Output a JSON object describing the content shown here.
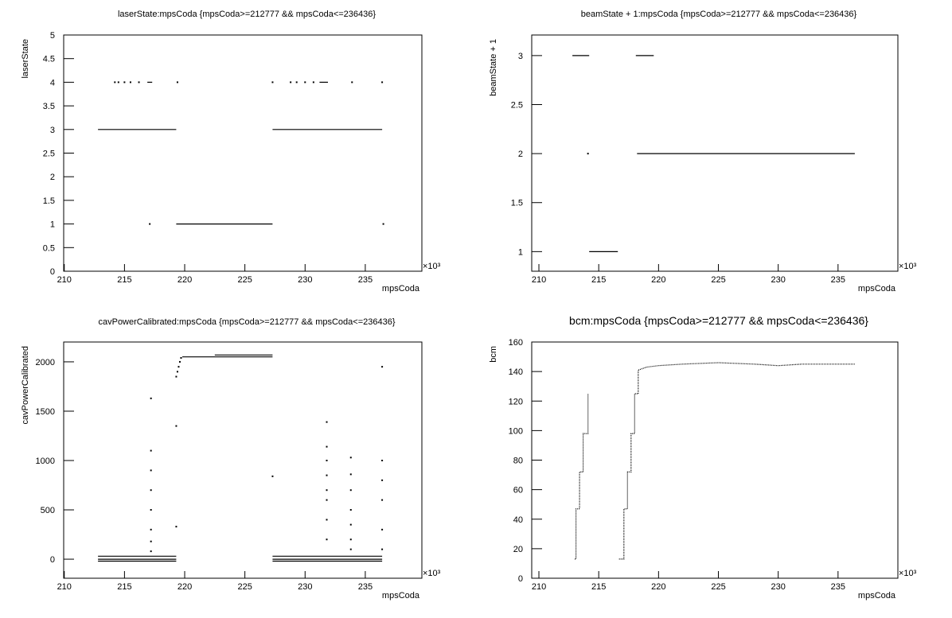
{
  "chart_data": [
    {
      "type": "scatter",
      "title": "laserState:mpsCoda {mpsCoda>=212777 && mpsCoda<=236436}",
      "x_label": "mpsCoda",
      "y_label": "laserState",
      "x_multiplier": "×10³",
      "xlim": [
        209.95,
        239.7
      ],
      "xticks": [
        210,
        215,
        220,
        225,
        230,
        235
      ],
      "ylim": [
        0,
        5
      ],
      "yticks": [
        0,
        0.5,
        1,
        1.5,
        2,
        2.5,
        3,
        3.5,
        4,
        4.5,
        5
      ],
      "series": [
        {
          "color": "#000000",
          "x": [
            212.8,
            219.3,
            null,
            219.3,
            227.3,
            null,
            227.3,
            236.4,
            null,
            214.2,
            null,
            214.5,
            null,
            215.0,
            null,
            215.5,
            null,
            216.2,
            null,
            216.9,
            217.3,
            null,
            219.4,
            null,
            227.3,
            null,
            228.8,
            null,
            229.3,
            null,
            230.0,
            null,
            230.7,
            null,
            231.2,
            231.9,
            null,
            233.9,
            null,
            236.4,
            null,
            217.1,
            null,
            236.5
          ],
          "values": [
            3,
            3,
            null,
            1,
            1,
            null,
            3,
            3,
            null,
            4,
            null,
            4,
            null,
            4,
            null,
            4,
            null,
            4,
            null,
            4,
            4,
            null,
            4,
            null,
            4,
            null,
            4,
            null,
            4,
            null,
            4,
            null,
            4,
            null,
            4,
            4,
            null,
            4,
            null,
            4,
            null,
            1,
            null,
            1
          ]
        }
      ]
    },
    {
      "type": "scatter",
      "title": "beamState + 1:mpsCoda {mpsCoda>=212777 && mpsCoda<=236436}",
      "x_label": "mpsCoda",
      "y_label": "beamState + 1",
      "x_multiplier": "×10³",
      "xlim": [
        209.4,
        240
      ],
      "xticks": [
        210,
        215,
        220,
        225,
        230,
        235
      ],
      "ylim": [
        0.8,
        3.21
      ],
      "yticks": [
        1,
        1.5,
        2,
        2.5,
        3
      ],
      "series": [
        {
          "color": "#000000",
          "x": [
            212.8,
            214.2,
            null,
            218.1,
            219.6,
            null,
            214.1,
            null,
            214.2,
            216.6,
            null,
            218.2,
            236.4
          ],
          "values": [
            3,
            3,
            null,
            3,
            3,
            null,
            2,
            null,
            1,
            1,
            null,
            2,
            2
          ]
        }
      ]
    },
    {
      "type": "scatter",
      "title": "cavPowerCalibrated:mpsCoda {mpsCoda>=212777 && mpsCoda<=236436}",
      "x_label": "mpsCoda",
      "y_label": "cavPowerCalibrated",
      "x_multiplier": "×10³",
      "xlim": [
        209.95,
        239.7
      ],
      "xticks": [
        210,
        215,
        220,
        225,
        230,
        235
      ],
      "ylim": [
        -193,
        2201
      ],
      "yticks": [
        0,
        500,
        1000,
        1500,
        2000
      ],
      "series": [
        {
          "color": "#000000",
          "x": [
            212.8,
            219.3,
            null,
            212.8,
            219.3,
            null,
            212.8,
            219.3,
            null,
            227.3,
            236.4,
            null,
            227.3,
            236.4,
            null,
            227.3,
            236.4,
            null,
            219.8,
            227.3,
            null,
            222.5,
            227.3,
            null,
            219.3,
            null,
            219.4,
            null,
            219.5,
            null,
            219.6,
            null,
            219.7,
            null,
            217.2,
            null,
            217.2,
            null,
            217.2,
            null,
            217.2,
            null,
            217.2,
            null,
            217.2,
            null,
            217.2,
            null,
            217.2,
            null,
            231.8,
            null,
            231.8,
            null,
            231.8,
            null,
            231.8,
            null,
            231.8,
            null,
            231.8,
            null,
            231.8,
            null,
            231.8,
            null,
            233.8,
            null,
            233.8,
            null,
            233.8,
            null,
            233.8,
            null,
            233.8,
            null,
            233.8,
            null,
            233.8,
            null,
            236.4,
            null,
            236.4,
            null,
            236.4,
            null,
            236.4,
            null,
            236.4,
            null,
            236.4,
            null,
            219.3,
            null,
            219.3,
            null,
            227.3
          ],
          "values": [
            30,
            30,
            null,
            0,
            0,
            null,
            -20,
            -20,
            null,
            30,
            30,
            null,
            0,
            0,
            null,
            -20,
            -20,
            null,
            2050,
            2050,
            null,
            2070,
            2070,
            null,
            1850,
            null,
            1900,
            null,
            1950,
            null,
            2000,
            null,
            2040,
            null,
            180,
            null,
            300,
            null,
            500,
            null,
            700,
            null,
            900,
            null,
            1100,
            null,
            1630,
            null,
            80,
            null,
            200,
            null,
            400,
            null,
            600,
            null,
            700,
            null,
            850,
            null,
            1000,
            null,
            1140,
            null,
            1390,
            null,
            100,
            null,
            200,
            null,
            350,
            null,
            500,
            null,
            700,
            null,
            860,
            null,
            1030,
            null,
            100,
            null,
            300,
            null,
            600,
            null,
            800,
            null,
            1000,
            null,
            1950,
            null,
            330,
            null,
            1350,
            null,
            840
          ]
        }
      ]
    },
    {
      "type": "scatter",
      "title": "bcm:mpsCoda {mpsCoda>=212777 && mpsCoda<=236436}",
      "x_label": "mpsCoda",
      "y_label": "bcm",
      "x_multiplier": "×10³",
      "xlim": [
        209.4,
        240
      ],
      "xticks": [
        210,
        215,
        220,
        225,
        230,
        235
      ],
      "ylim": [
        0,
        160
      ],
      "yticks": [
        0,
        20,
        40,
        60,
        80,
        100,
        120,
        140,
        160
      ],
      "series": [
        {
          "color": "#000000",
          "x": [
            213.0,
            213.1,
            213.1,
            213.4,
            213.4,
            213.7,
            213.7,
            214.1,
            214.1,
            null,
            216.7,
            217.1,
            217.1,
            217.4,
            217.4,
            217.7,
            217.7,
            218.0,
            218.0,
            218.3,
            218.3,
            219.0,
            220.0,
            222.0,
            225.0,
            228.0,
            230.0,
            232.0,
            234.0,
            236.4
          ],
          "values": [
            13,
            13,
            47,
            47,
            72,
            72,
            98,
            98,
            125,
            null,
            13,
            13,
            47,
            47,
            72,
            72,
            98,
            98,
            125,
            125,
            141,
            143,
            144,
            145,
            146,
            145,
            144,
            145,
            145,
            145
          ]
        }
      ]
    }
  ]
}
